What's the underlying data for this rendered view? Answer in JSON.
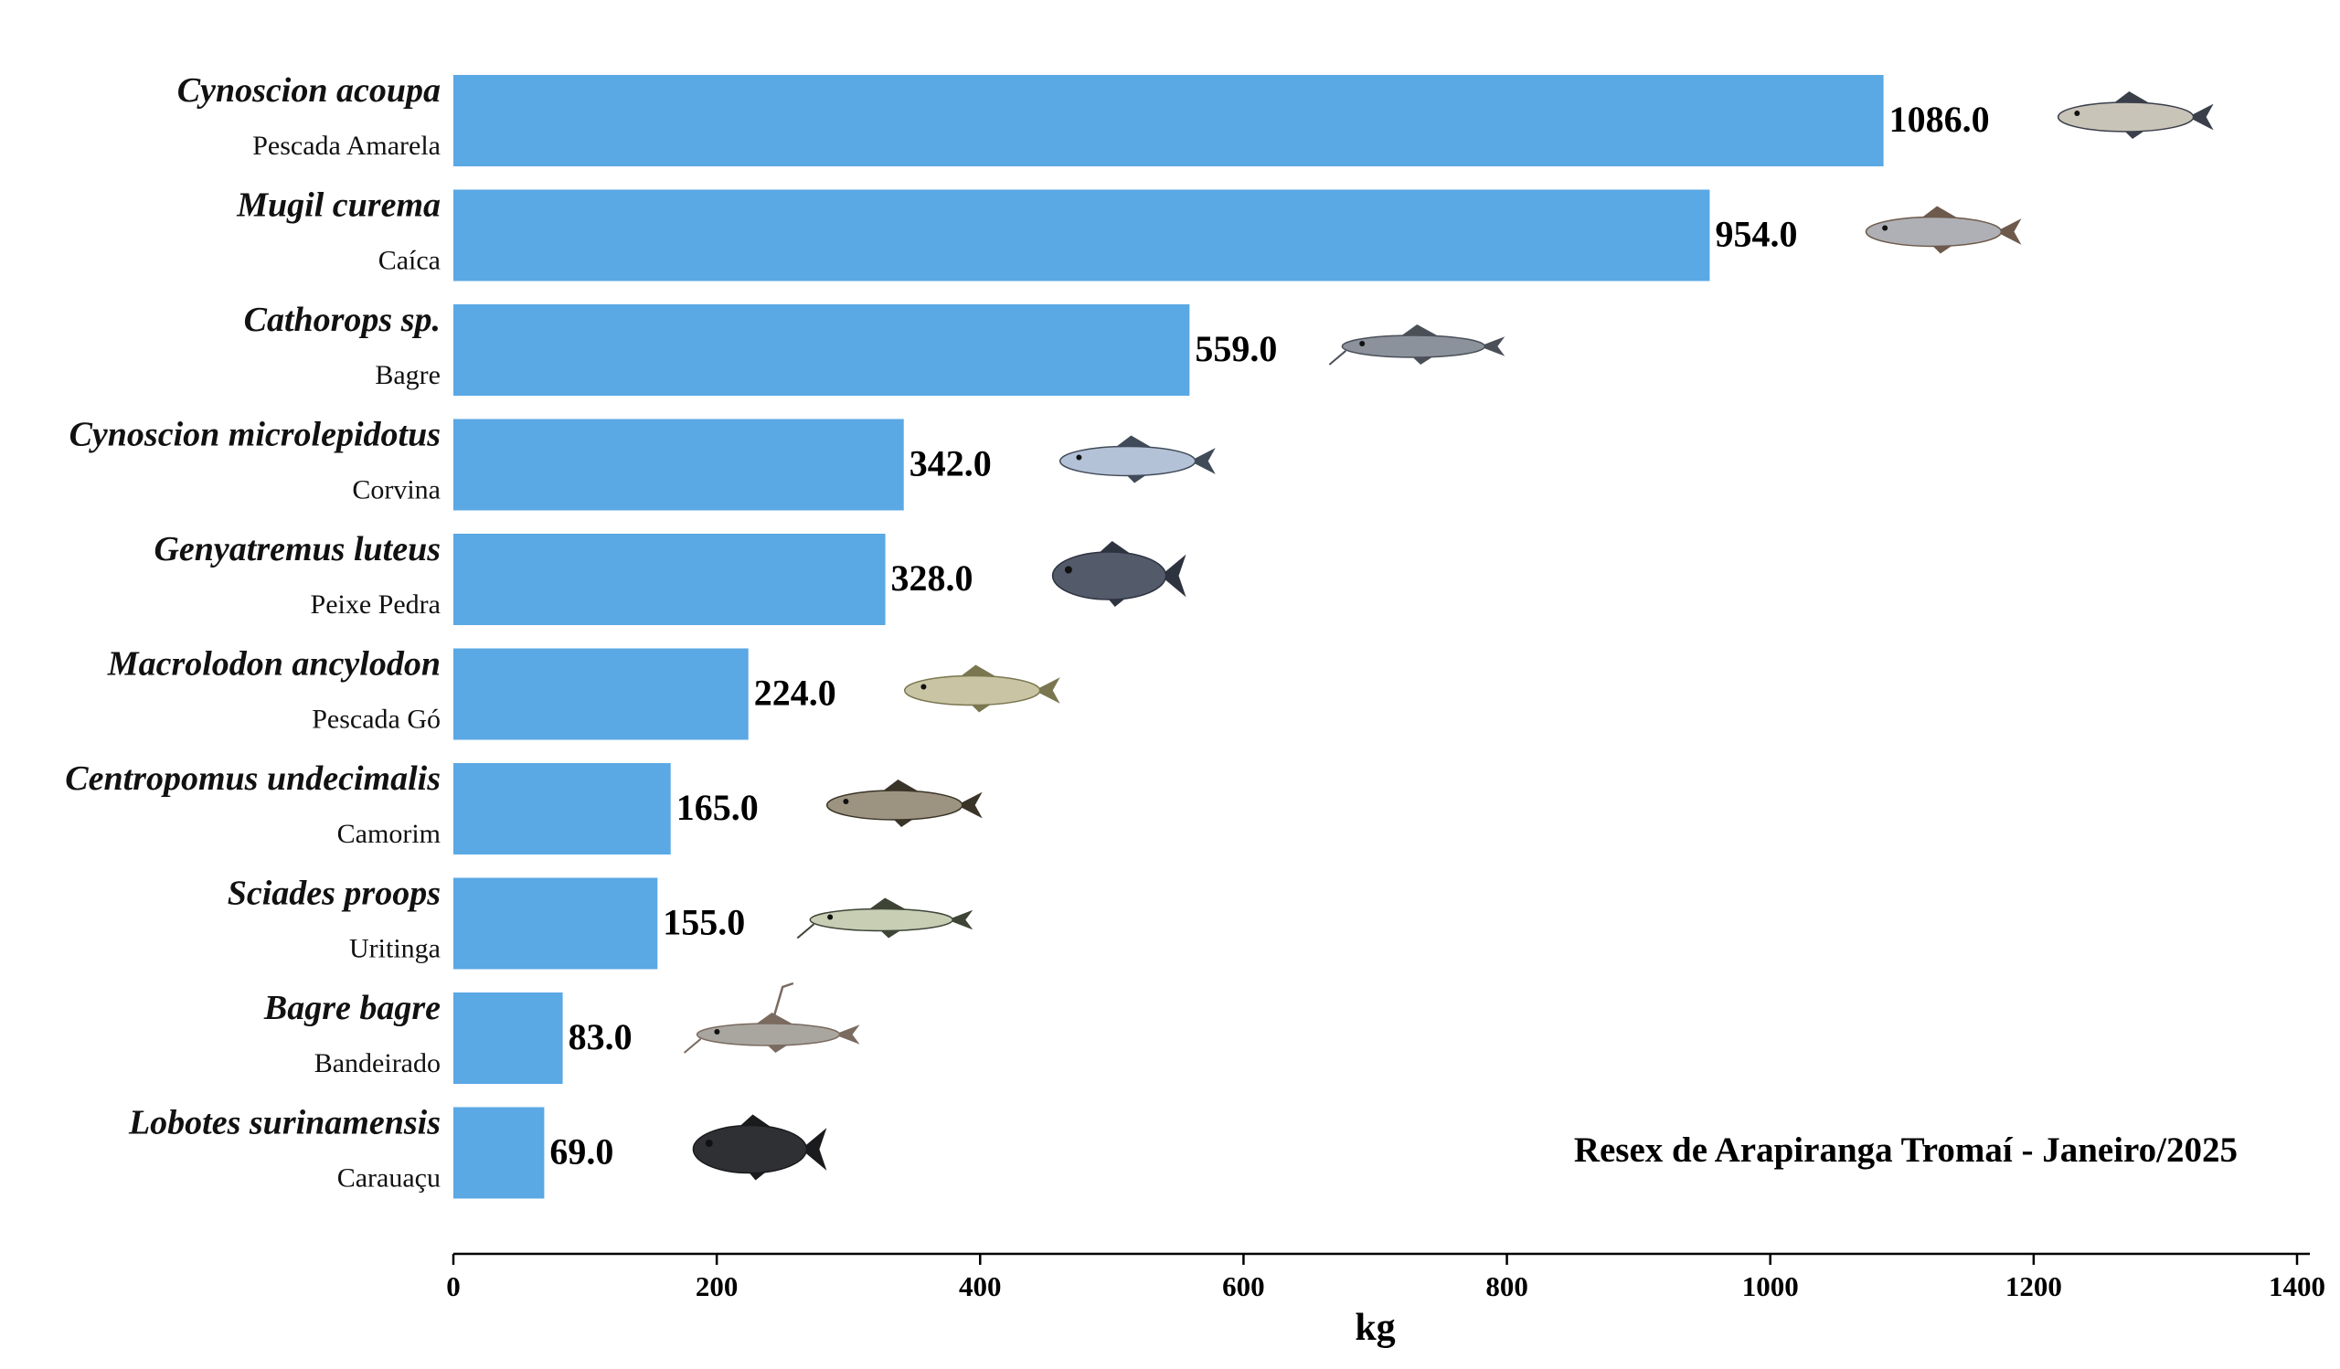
{
  "chart_data": {
    "type": "bar",
    "orientation": "horizontal",
    "title": "",
    "annotation": "Resex de Arapiranga Tromaí - Janeiro/2025",
    "xlabel": "kg",
    "ylabel": "",
    "xlim": [
      0,
      1400
    ],
    "xticks": [
      0,
      200,
      400,
      600,
      800,
      1000,
      1200,
      1400
    ],
    "xtick_labels": [
      "0",
      "200",
      "400",
      "600",
      "800",
      "1000",
      "1200",
      "1400"
    ],
    "bar_color": "#5aa8e4",
    "categories": [
      {
        "scientific": "Cynoscion acoupa",
        "common": "Pescada Amarela",
        "value": 1086.0,
        "label": "1086.0",
        "icon": "pescada-amarela-fish-icon",
        "fish_color": "#c9c4b8",
        "fin_color": "#3a3f4a"
      },
      {
        "scientific": "Mugil curema",
        "common": "Caíca",
        "value": 954.0,
        "label": "954.0",
        "icon": "caica-fish-icon",
        "fish_color": "#aeb0b5",
        "fin_color": "#6d5a4c"
      },
      {
        "scientific": "Cathorops sp.",
        "common": "Bagre",
        "value": 559.0,
        "label": "559.0",
        "icon": "bagre-fish-icon",
        "fish_color": "#8b929b",
        "fin_color": "#4b5058"
      },
      {
        "scientific": "Cynoscion microlepidotus",
        "common": "Corvina",
        "value": 342.0,
        "label": "342.0",
        "icon": "corvina-fish-icon",
        "fish_color": "#b4c2d8",
        "fin_color": "#404a58"
      },
      {
        "scientific": "Genyatremus luteus",
        "common": "Peixe Pedra",
        "value": 328.0,
        "label": "328.0",
        "icon": "peixe-pedra-fish-icon",
        "fish_color": "#535a6a",
        "fin_color": "#2e3340"
      },
      {
        "scientific": "Macrolodon ancylodon",
        "common": "Pescada Gó",
        "value": 224.0,
        "label": "224.0",
        "icon": "pescada-go-fish-icon",
        "fish_color": "#c8c4a4",
        "fin_color": "#7a7650"
      },
      {
        "scientific": "Centropomus undecimalis",
        "common": "Camorim",
        "value": 165.0,
        "label": "165.0",
        "icon": "camorim-fish-icon",
        "fish_color": "#9c9480",
        "fin_color": "#3a3428"
      },
      {
        "scientific": "Sciades proops",
        "common": "Uritinga",
        "value": 155.0,
        "label": "155.0",
        "icon": "uritinga-fish-icon",
        "fish_color": "#c7ceb4",
        "fin_color": "#3e4436"
      },
      {
        "scientific": "Bagre bagre",
        "common": "Bandeirado",
        "value": 83.0,
        "label": "83.0",
        "icon": "bandeirado-fish-icon",
        "fish_color": "#a9a6a0",
        "fin_color": "#7a6a60"
      },
      {
        "scientific": "Lobotes surinamensis",
        "common": "Carauaçu",
        "value": 69.0,
        "label": "69.0",
        "icon": "carauacu-fish-icon",
        "fish_color": "#2f3033",
        "fin_color": "#1a1b1d"
      }
    ]
  }
}
